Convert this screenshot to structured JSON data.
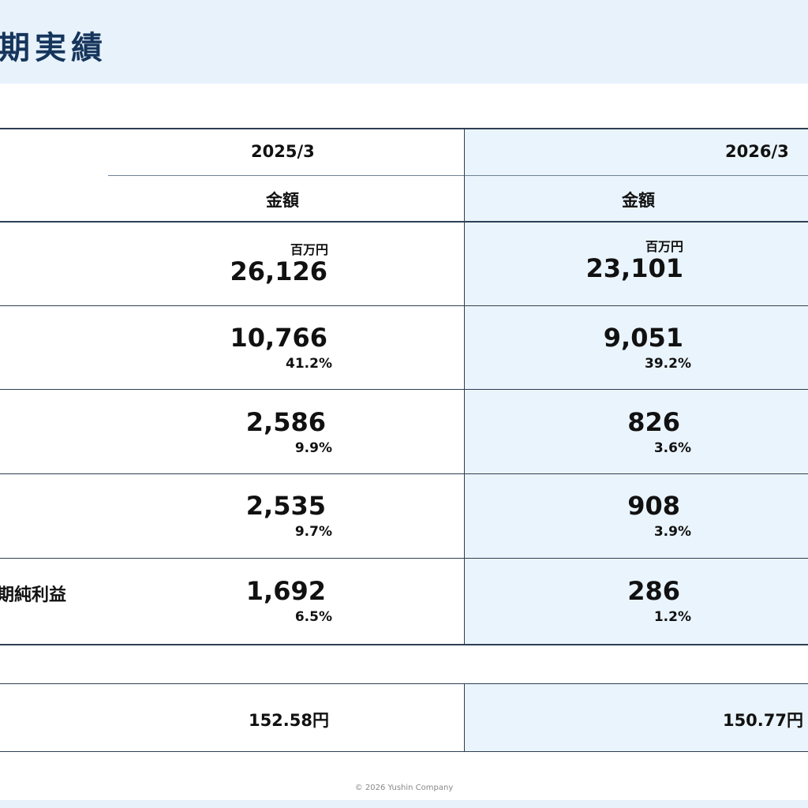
{
  "title": "期実績",
  "columns": [
    {
      "period": "2025/3",
      "subheader": "金額"
    },
    {
      "period": "2026/3",
      "subheader": "金額"
    }
  ],
  "unit_label": "百万円",
  "rows": [
    {
      "label": "",
      "values": [
        {
          "amount": "26,126",
          "ratio": ""
        },
        {
          "amount": "23,101",
          "ratio": ""
        }
      ]
    },
    {
      "label": "",
      "values": [
        {
          "amount": "10,766",
          "ratio": "41.2%"
        },
        {
          "amount": "9,051",
          "ratio": "39.2%"
        }
      ]
    },
    {
      "label": "",
      "values": [
        {
          "amount": "2,586",
          "ratio": "9.9%"
        },
        {
          "amount": "826",
          "ratio": "3.6%"
        }
      ]
    },
    {
      "label": "",
      "values": [
        {
          "amount": "2,535",
          "ratio": "9.7%"
        },
        {
          "amount": "908",
          "ratio": "3.9%"
        }
      ]
    },
    {
      "label": "期純利益",
      "values": [
        {
          "amount": "1,692",
          "ratio": "6.5%"
        },
        {
          "amount": "286",
          "ratio": "1.2%"
        }
      ]
    }
  ],
  "eps_row": {
    "label": "",
    "values": [
      "152.58円",
      "150.77円"
    ]
  },
  "footer": "© 2026 Yushin Company",
  "colors": {
    "title": "#16355c",
    "header_band": "#e7f2fb",
    "column_highlight": "#eaf4fc",
    "rule": "#2d3f55"
  }
}
